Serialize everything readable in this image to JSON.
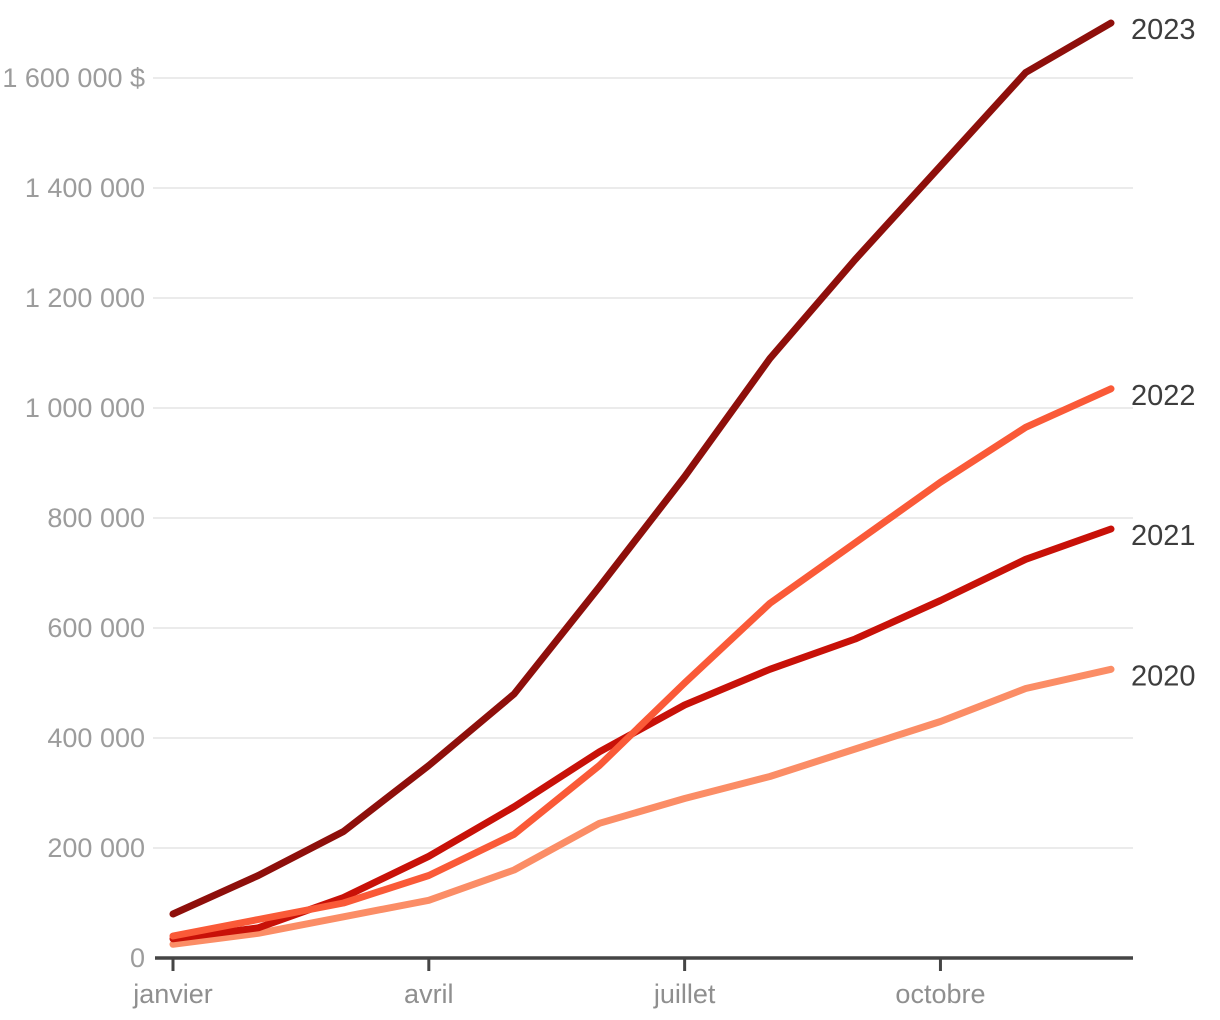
{
  "chart_data": {
    "type": "line",
    "title": "",
    "x_unit": "month",
    "x_count": 12,
    "x_ticks": [
      {
        "i": 0,
        "label": "janvier"
      },
      {
        "i": 3,
        "label": "avril"
      },
      {
        "i": 6,
        "label": "juillet"
      },
      {
        "i": 9,
        "label": "octobre"
      }
    ],
    "y_ticks": [
      {
        "value": 0,
        "label": "0"
      },
      {
        "value": 200000,
        "label": "200 000"
      },
      {
        "value": 400000,
        "label": "400 000"
      },
      {
        "value": 600000,
        "label": "600 000"
      },
      {
        "value": 800000,
        "label": "800 000"
      },
      {
        "value": 1000000,
        "label": "1 000 000"
      },
      {
        "value": 1200000,
        "label": "1 200 000"
      },
      {
        "value": 1400000,
        "label": "1 400 000"
      },
      {
        "value": 1600000,
        "label": "1 600 000 $"
      }
    ],
    "ylim": [
      0,
      1760000
    ],
    "grid": true,
    "legend_position": "right-of-line-end",
    "currency": "$",
    "series": [
      {
        "name": "2020",
        "color": "#FB8D66",
        "values": [
          25000,
          45000,
          75000,
          105000,
          160000,
          245000,
          290000,
          330000,
          380000,
          430000,
          490000,
          525000
        ]
      },
      {
        "name": "2021",
        "color": "#C81108",
        "values": [
          35000,
          55000,
          110000,
          185000,
          275000,
          375000,
          460000,
          525000,
          580000,
          650000,
          725000,
          780000
        ]
      },
      {
        "name": "2022",
        "color": "#FA5A38",
        "values": [
          40000,
          70000,
          100000,
          150000,
          225000,
          350000,
          500000,
          645000,
          755000,
          865000,
          965000,
          1035000
        ]
      },
      {
        "name": "2023",
        "color": "#8E0F0B",
        "values": [
          80000,
          150000,
          230000,
          350000,
          480000,
          675000,
          875000,
          1090000,
          1270000,
          1440000,
          1610000,
          1700000
        ]
      }
    ],
    "style": {
      "grid_color": "#EBEBEB",
      "axis_color": "#454545",
      "tick_label_color": "#9C9C9C",
      "month_label_color": "#8F8F8F",
      "series_label_color": "#3D3D3D",
      "background": "#FFFFFF"
    }
  }
}
